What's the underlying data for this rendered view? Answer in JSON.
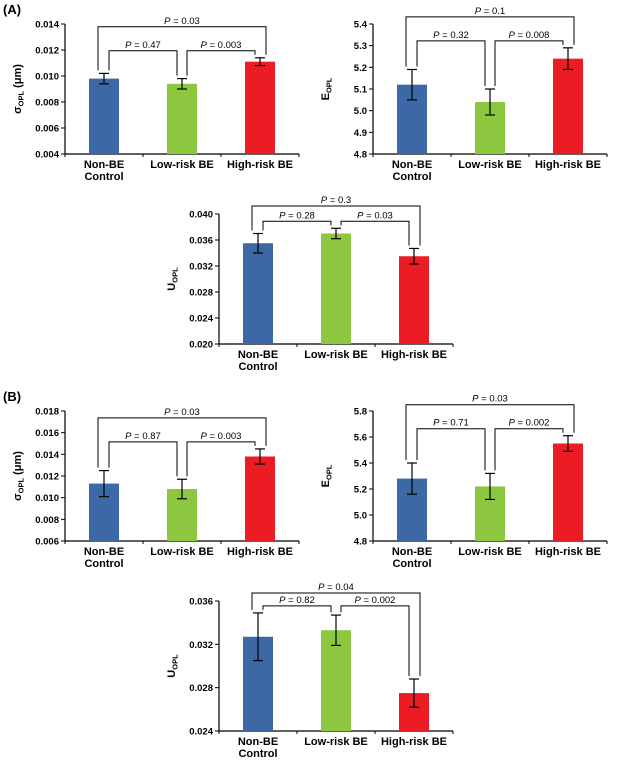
{
  "figure": {
    "background": "#ffffff"
  },
  "panels": [
    {
      "label": "(A)"
    },
    {
      "label": "(B)"
    }
  ],
  "colors": {
    "bars": [
      "#3c69a5",
      "#8dc63f",
      "#ec1c24"
    ],
    "axis": "#000000",
    "error_bars": "#000000",
    "text": "#000000"
  },
  "chart_data": [
    {
      "type": "bar",
      "name": "sigma-opl-panel-a",
      "panel": "A",
      "ylabel": {
        "pre": "σ",
        "sub": "OPL",
        "post": " (μm)"
      },
      "categories": [
        [
          "Non-BE",
          "Control"
        ],
        [
          "Low-risk BE"
        ],
        [
          "High-risk BE"
        ]
      ],
      "values": [
        0.0098,
        0.0094,
        0.0111
      ],
      "errors": [
        0.0004,
        0.0004,
        0.0003
      ],
      "ylim": [
        0.004,
        0.014
      ],
      "yticks": [
        "0.004",
        "0.006",
        "0.008",
        "0.010",
        "0.012",
        "0.014"
      ],
      "grid": false,
      "comparisons": [
        {
          "pair": [
            0,
            1
          ],
          "label": "P = 0.47"
        },
        {
          "pair": [
            1,
            2
          ],
          "label": "P = 0.003"
        },
        {
          "pair": [
            0,
            2
          ],
          "label": "P = 0.03"
        }
      ]
    },
    {
      "type": "bar",
      "name": "e-opl-panel-a",
      "panel": "A",
      "ylabel": {
        "pre": "E",
        "sub": "OPL",
        "post": ""
      },
      "categories": [
        [
          "Non-BE",
          "Control"
        ],
        [
          "Low-risk BE"
        ],
        [
          "High-risk BE"
        ]
      ],
      "values": [
        5.12,
        5.04,
        5.24
      ],
      "errors": [
        0.07,
        0.06,
        0.05
      ],
      "ylim": [
        4.8,
        5.4
      ],
      "yticks": [
        "4.8",
        "4.9",
        "5.0",
        "5.1",
        "5.2",
        "5.3",
        "5.4"
      ],
      "grid": false,
      "comparisons": [
        {
          "pair": [
            0,
            1
          ],
          "label": "P = 0.32"
        },
        {
          "pair": [
            1,
            2
          ],
          "label": "P = 0.008"
        },
        {
          "pair": [
            0,
            2
          ],
          "label": "P = 0.1"
        }
      ]
    },
    {
      "type": "bar",
      "name": "u-opl-panel-a",
      "panel": "A",
      "ylabel": {
        "pre": "U",
        "sub": "OPL",
        "post": ""
      },
      "categories": [
        [
          "Non-BE",
          "Control"
        ],
        [
          "Low-risk BE"
        ],
        [
          "High-risk BE"
        ]
      ],
      "values": [
        0.0355,
        0.037,
        0.0335
      ],
      "errors": [
        0.0015,
        0.0008,
        0.0012
      ],
      "ylim": [
        0.02,
        0.04
      ],
      "yticks": [
        "0.020",
        "0.024",
        "0.028",
        "0.032",
        "0.036",
        "0.040"
      ],
      "grid": false,
      "comparisons": [
        {
          "pair": [
            0,
            1
          ],
          "label": "P = 0.28"
        },
        {
          "pair": [
            1,
            2
          ],
          "label": "P = 0.03"
        },
        {
          "pair": [
            0,
            2
          ],
          "label": "P = 0.3"
        }
      ]
    },
    {
      "type": "bar",
      "name": "sigma-opl-panel-b",
      "panel": "B",
      "ylabel": {
        "pre": "σ",
        "sub": "OPL",
        "post": " (μm)"
      },
      "categories": [
        [
          "Non-BE",
          "Control"
        ],
        [
          "Low-risk BE"
        ],
        [
          "High-risk BE"
        ]
      ],
      "values": [
        0.0113,
        0.0108,
        0.0138
      ],
      "errors": [
        0.0012,
        0.0009,
        0.0007
      ],
      "ylim": [
        0.006,
        0.018
      ],
      "yticks": [
        "0.006",
        "0.008",
        "0.010",
        "0.012",
        "0.014",
        "0.016",
        "0.018"
      ],
      "grid": false,
      "comparisons": [
        {
          "pair": [
            0,
            1
          ],
          "label": "P = 0.87"
        },
        {
          "pair": [
            1,
            2
          ],
          "label": "P = 0.003"
        },
        {
          "pair": [
            0,
            2
          ],
          "label": "P = 0.03"
        }
      ]
    },
    {
      "type": "bar",
      "name": "e-opl-panel-b",
      "panel": "B",
      "ylabel": {
        "pre": "E",
        "sub": "OPL",
        "post": ""
      },
      "categories": [
        [
          "Non-BE",
          "Control"
        ],
        [
          "Low-risk BE"
        ],
        [
          "High-risk BE"
        ]
      ],
      "values": [
        5.28,
        5.22,
        5.55
      ],
      "errors": [
        0.12,
        0.1,
        0.06
      ],
      "ylim": [
        4.8,
        5.8
      ],
      "yticks": [
        "4.8",
        "5.0",
        "5.2",
        "5.4",
        "5.6",
        "5.8"
      ],
      "grid": false,
      "comparisons": [
        {
          "pair": [
            0,
            1
          ],
          "label": "P = 0.71"
        },
        {
          "pair": [
            1,
            2
          ],
          "label": "P = 0.002"
        },
        {
          "pair": [
            0,
            2
          ],
          "label": "P = 0.03"
        }
      ]
    },
    {
      "type": "bar",
      "name": "u-opl-panel-b",
      "panel": "B",
      "ylabel": {
        "pre": "U",
        "sub": "OPL",
        "post": ""
      },
      "categories": [
        [
          "Non-BE",
          "Control"
        ],
        [
          "Low-risk BE"
        ],
        [
          "High-risk BE"
        ]
      ],
      "values": [
        0.0327,
        0.0333,
        0.0275
      ],
      "errors": [
        0.0022,
        0.0014,
        0.0013
      ],
      "ylim": [
        0.024,
        0.036
      ],
      "yticks": [
        "0.024",
        "0.028",
        "0.032",
        "0.036"
      ],
      "grid": false,
      "comparisons": [
        {
          "pair": [
            0,
            1
          ],
          "label": "P = 0.82"
        },
        {
          "pair": [
            1,
            2
          ],
          "label": "P = 0.002"
        },
        {
          "pair": [
            0,
            2
          ],
          "label": "P = 0.04"
        }
      ]
    }
  ]
}
